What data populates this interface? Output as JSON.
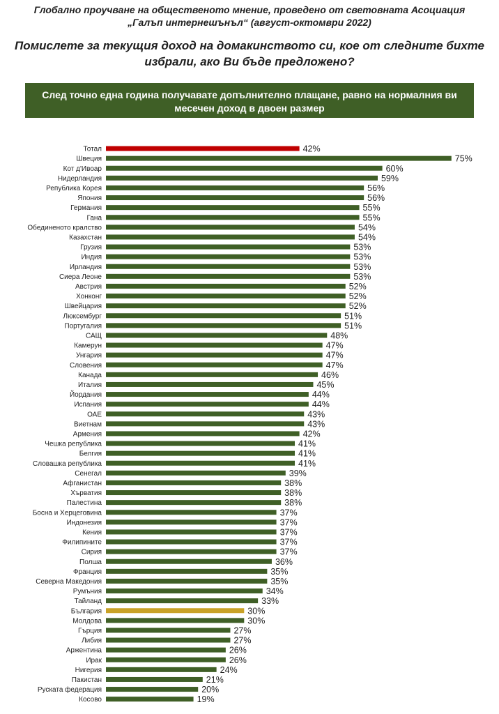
{
  "header": {
    "line1": "Глобално проучване на общественото мнение, проведено от световната Асоциация",
    "line2": "„Галъп интернешънъл“ (август-октомври 2022)",
    "question_line1": "Помислете за текущия доход на домакинството си, кое от следните бихте",
    "question_line2": "избрали, ако Ви бъде предложено?",
    "banner_line1": "След точно една година получавате допълнително плащане, равно на нормалния ви",
    "banner_line2": "месечен доход в двоен размер"
  },
  "colors": {
    "default": "#3f5f26",
    "total": "#c00000",
    "bulgaria": "#c9a227",
    "banner": "#3f5f26"
  },
  "chart_data": {
    "type": "bar",
    "orientation": "horizontal",
    "unit": "%",
    "xlim": [
      0,
      100
    ],
    "grid": false,
    "title": "След точно една година получавате допълнително плащане, равно на нормалния ви месечен доход в двоен размер",
    "categories": [
      "Тотал",
      "Швеция",
      "Кот д'Ивоар",
      "Нидерландия",
      "Република Корея",
      "Япония",
      "Германия",
      "Гана",
      "Обединеното кралство",
      "Казахстан",
      "Грузия",
      "Индия",
      "Ирландия",
      "Сиера Леоне",
      "Австрия",
      "Хонконг",
      "Швейцария",
      "Люксембург",
      "Португалия",
      "САЩ",
      "Камерун",
      "Унгария",
      "Словения",
      "Канада",
      "Италия",
      "Йордания",
      "Испания",
      "ОАЕ",
      "Виетнам",
      "Армения",
      "Чешка република",
      "Белгия",
      "Словашка република",
      "Сенегал",
      "Афганистан",
      "Хърватия",
      "Палестина",
      "Босна и Херцеговина",
      "Индонезия",
      "Кения",
      "Филипините",
      "Сирия",
      "Полша",
      "Франция",
      "Северна Македония",
      "Румъния",
      "Тайланд",
      "България",
      "Молдова",
      "Гърция",
      "Либия",
      "Аржентина",
      "Ирак",
      "Нигерия",
      "Пакистан",
      "Руската федерация",
      "Косово"
    ],
    "values": [
      42,
      75,
      60,
      59,
      56,
      56,
      55,
      55,
      54,
      54,
      53,
      53,
      53,
      53,
      52,
      52,
      52,
      51,
      51,
      48,
      47,
      47,
      47,
      46,
      45,
      44,
      44,
      43,
      43,
      42,
      41,
      41,
      41,
      39,
      38,
      38,
      38,
      37,
      37,
      37,
      37,
      37,
      36,
      35,
      35,
      34,
      33,
      30,
      30,
      27,
      27,
      26,
      26,
      24,
      21,
      20,
      19
    ],
    "labels": [
      "42%",
      "75%",
      "60%",
      "59%",
      "56%",
      "56%",
      "55%",
      "55%",
      "54%",
      "54%",
      "53%",
      "53%",
      "53%",
      "53%",
      "52%",
      "52%",
      "52%",
      "51%",
      "51%",
      "48%",
      "47%",
      "47%",
      "47%",
      "46%",
      "45%",
      "44%",
      "44%",
      "43%",
      "43%",
      "42%",
      "41%",
      "41%",
      "41%",
      "39%",
      "38%",
      "38%",
      "38%",
      "37%",
      "37%",
      "37%",
      "37%",
      "37%",
      "36%",
      "35%",
      "35%",
      "34%",
      "33%",
      "30%",
      "30%",
      "27%",
      "27%",
      "26%",
      "26%",
      "24%",
      "21%",
      "20%",
      "19%"
    ],
    "highlight": {
      "Тотал": "total",
      "България": "bulgaria"
    }
  }
}
